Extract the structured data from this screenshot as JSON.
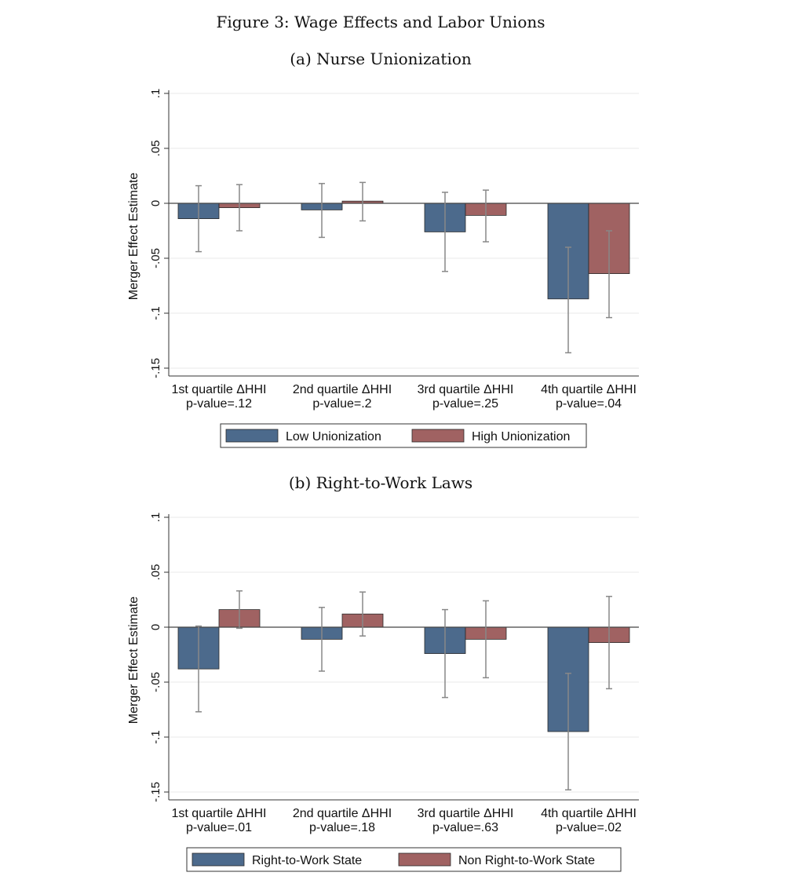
{
  "figure_title": "Figure 3: Wage Effects and Labor Unions",
  "colors": {
    "series1": "#4c6a8c",
    "series2": "#a06262",
    "error_bar": "#888888",
    "grid": "#eaeaea"
  },
  "chart_data": [
    {
      "type": "bar",
      "title": "(a) Nurse Unionization",
      "ylabel": "Merger Effect Estimate",
      "ylim": [
        -0.15,
        0.1
      ],
      "yticks": [
        0.1,
        0.05,
        0,
        -0.05,
        -0.1,
        -0.15
      ],
      "ytick_labels": [
        ".1",
        ".05",
        "0",
        "-.05",
        "-.1",
        "-.15"
      ],
      "grid": true,
      "categories": [
        "1st quartile ΔHHI",
        "2nd quartile ΔHHI",
        "3rd quartile ΔHHI",
        "4th quartile ΔHHI"
      ],
      "p_values": [
        "p-value=.12",
        "p-value=.2",
        "p-value=.25",
        "p-value=.04"
      ],
      "series": [
        {
          "name": "Low Unionization",
          "values": [
            -0.014,
            -0.006,
            -0.026,
            -0.087
          ],
          "ci_low": [
            -0.044,
            -0.031,
            -0.062,
            -0.136
          ],
          "ci_high": [
            0.016,
            0.018,
            0.01,
            -0.04
          ]
        },
        {
          "name": "High Unionization",
          "values": [
            -0.004,
            0.002,
            -0.011,
            -0.064
          ],
          "ci_low": [
            -0.025,
            -0.016,
            -0.035,
            -0.104
          ],
          "ci_high": [
            0.017,
            0.019,
            0.012,
            -0.025
          ]
        }
      ],
      "legend_position": "bottom"
    },
    {
      "type": "bar",
      "title": "(b) Right-to-Work Laws",
      "ylabel": "Merger Effect Estimate",
      "ylim": [
        -0.15,
        0.1
      ],
      "yticks": [
        0.1,
        0.05,
        0,
        -0.05,
        -0.1,
        -0.15
      ],
      "ytick_labels": [
        ".1",
        ".05",
        "0",
        "-.05",
        "-.1",
        "-.15"
      ],
      "grid": true,
      "categories": [
        "1st quartile ΔHHI",
        "2nd quartile ΔHHI",
        "3rd quartile ΔHHI",
        "4th quartile ΔHHI"
      ],
      "p_values": [
        "p-value=.01",
        "p-value=.18",
        "p-value=.63",
        "p-value=.02"
      ],
      "series": [
        {
          "name": "Right-to-Work State",
          "values": [
            -0.038,
            -0.011,
            -0.024,
            -0.095
          ],
          "ci_low": [
            -0.077,
            -0.04,
            -0.064,
            -0.148
          ],
          "ci_high": [
            0.001,
            0.018,
            0.016,
            -0.042
          ]
        },
        {
          "name": "Non Right-to-Work State",
          "values": [
            0.016,
            0.012,
            -0.011,
            -0.014
          ],
          "ci_low": [
            -0.001,
            -0.008,
            -0.046,
            -0.056
          ],
          "ci_high": [
            0.033,
            0.032,
            0.024,
            0.028
          ]
        }
      ],
      "legend_position": "bottom"
    }
  ]
}
